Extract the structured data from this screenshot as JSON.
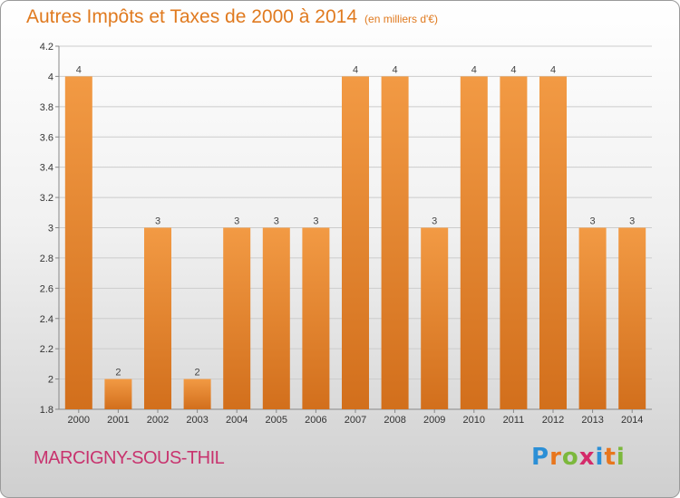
{
  "title": "Autres Impôts et Taxes de 2000 à 2014",
  "subtitle": "(en milliers d'€)",
  "place": "MARCIGNY-SOUS-THIL",
  "logo": {
    "letters": [
      "P",
      "r",
      "o",
      "x",
      "i",
      "t",
      "i"
    ],
    "colors": [
      "#2b8fd6",
      "#e8761d",
      "#7cb83c",
      "#d42b6a",
      "#2b8fd6",
      "#e8761d",
      "#7cb83c"
    ]
  },
  "colors": {
    "bar": "#f29a44",
    "bar_dark": "#d26f1c",
    "text": "#e07a1f",
    "place": "#c8336e",
    "grid": "#cccccc"
  },
  "chart_data": {
    "type": "bar",
    "title": "Autres Impôts et Taxes de 2000 à 2014",
    "subtitle": "(en milliers d'€)",
    "categories": [
      "2000",
      "2001",
      "2002",
      "2003",
      "2004",
      "2005",
      "2006",
      "2007",
      "2008",
      "2009",
      "2010",
      "2011",
      "2012",
      "2013",
      "2014"
    ],
    "values": [
      4,
      2,
      3,
      2,
      3,
      3,
      3,
      4,
      4,
      3,
      4,
      4,
      4,
      3,
      3
    ],
    "data_labels": [
      "4",
      "2",
      "3",
      "2",
      "3",
      "3",
      "3",
      "4",
      "4",
      "3",
      "4",
      "4",
      "4",
      "3",
      "3"
    ],
    "ylim": [
      1.8,
      4.2
    ],
    "yticks": [
      "1.8",
      "2",
      "2.2",
      "2.4",
      "2.6",
      "2.8",
      "3",
      "3.2",
      "3.4",
      "3.6",
      "3.8",
      "4",
      "4.2"
    ],
    "ytick_values": [
      1.8,
      2,
      2.2,
      2.4,
      2.6,
      2.8,
      3,
      3.2,
      3.4,
      3.6,
      3.8,
      4,
      4.2
    ],
    "grid": true,
    "xlabel": "",
    "ylabel": ""
  }
}
